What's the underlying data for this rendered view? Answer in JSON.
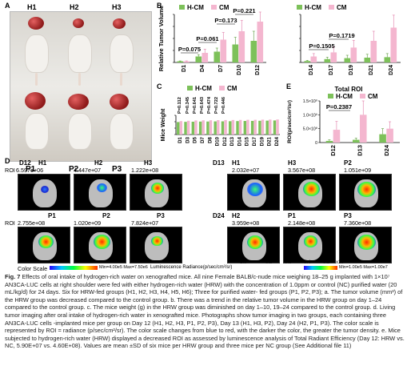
{
  "panel_labels": {
    "A": "A",
    "B": "B",
    "C": "C",
    "D": "D",
    "E": "E"
  },
  "panelA": {
    "headers": [
      "H1",
      "H2",
      "H3"
    ],
    "bottom_labels": [
      "P1",
      "P2",
      "P3"
    ]
  },
  "legend": {
    "h": "H-CM",
    "c": "CM",
    "h_color": "#7dc15a",
    "c_color": "#f4b6cf"
  },
  "chart_data": [
    {
      "type": "bar",
      "panel": "B-left",
      "ylabel": "Relative Tumor Volume",
      "categories": [
        "D1",
        "D4",
        "D7",
        "D10",
        "D12"
      ],
      "ylim": [
        0,
        40
      ],
      "yticks": [
        "0",
        "10",
        "20",
        "30",
        "40"
      ],
      "series": [
        {
          "name": "H-CM",
          "values": [
            1,
            5,
            9,
            15,
            18
          ],
          "errors": [
            0.3,
            1.5,
            3,
            6,
            8
          ]
        },
        {
          "name": "CM",
          "values": [
            1,
            8,
            19,
            26,
            34
          ],
          "errors": [
            0.3,
            3,
            6,
            9,
            8
          ]
        }
      ],
      "annotations": [
        "P=0.075",
        "P=0.061",
        "P=0.173",
        "P=0.221"
      ]
    },
    {
      "type": "bar",
      "panel": "B-right",
      "categories": [
        "D14",
        "D17",
        "D19",
        "D21",
        "D24"
      ],
      "ylim": [
        0,
        2000
      ],
      "yticks": [
        "0",
        "500",
        "1000",
        "1500",
        "2000"
      ],
      "series": [
        {
          "name": "H-CM",
          "values": [
            60,
            140,
            180,
            200,
            220
          ],
          "errors": [
            30,
            80,
            120,
            140,
            150
          ]
        },
        {
          "name": "CM",
          "values": [
            250,
            420,
            620,
            900,
            1450
          ],
          "errors": [
            120,
            220,
            300,
            400,
            520
          ]
        }
      ],
      "annotations": [
        "P=0.1505",
        "P=0.1719"
      ]
    },
    {
      "type": "bar",
      "panel": "C",
      "ylabel": "Mice Weight",
      "categories": [
        "D1",
        "D3",
        "D5",
        "D7",
        "D8",
        "D10",
        "D12",
        "D13",
        "D14",
        "D15",
        "D17",
        "D19",
        "D21",
        "D24"
      ],
      "ylim": [
        0,
        30
      ],
      "yticks": [
        "0",
        "10",
        "20",
        "30"
      ],
      "series": [
        {
          "name": "H-CM",
          "values": [
            19.5,
            19.8,
            20,
            20.2,
            20.3,
            20.5,
            20.6,
            20.8,
            21,
            21.2,
            21.3,
            21.5,
            21.7,
            22
          ]
        },
        {
          "name": "CM",
          "values": [
            21,
            21.5,
            22,
            22.2,
            22.3,
            22.5,
            22.6,
            22.7,
            22.8,
            23,
            23,
            23.2,
            23.3,
            23.5
          ]
        }
      ],
      "annotations": [
        "P=0.112",
        "P=0.345",
        "P=0.641",
        "P=0.643",
        "P=0.474",
        "P=0.722",
        "P=0.446"
      ]
    },
    {
      "type": "bar",
      "panel": "E",
      "title": "Total ROI",
      "ylabel": "ROI(p/sec/cm²/sr)",
      "categories": [
        "D12",
        "D13",
        "D24"
      ],
      "ylim": [
        0,
        1500000000.0
      ],
      "yticks": [
        "0",
        "5.0×10⁸",
        "1.0×10⁹",
        "1.5×10⁹"
      ],
      "series": [
        {
          "name": "H-CM",
          "values": [
            59000000.0,
            100000000.0,
            300000000.0
          ],
          "errors": [
            40000000.0,
            60000000.0,
            200000000.0
          ]
        },
        {
          "name": "CM",
          "values": [
            460000000.0,
            1000000000.0,
            500000000.0
          ],
          "errors": [
            300000000.0,
            500000000.0,
            250000000.0
          ]
        }
      ],
      "annotations": [
        "P=0.2387"
      ]
    }
  ],
  "panelD": {
    "left_headers": [
      "D12",
      "H1",
      "H2",
      "H3"
    ],
    "right_headers": [
      "D13",
      "H1",
      "H3",
      "P2"
    ],
    "row1_left": [
      "6.597e+06",
      "4.447e+07",
      "1.222e+08"
    ],
    "row1_right": [
      "2.032e+07",
      "3.567e+08",
      "1.051e+09"
    ],
    "row2_left_headers": [
      "P1",
      "P2",
      "P3"
    ],
    "row2_left": [
      "2.755e+08",
      "1.020e+09",
      "7.824e+07"
    ],
    "row2_right_headers": [
      "D24",
      "H2",
      "P1",
      "P3"
    ],
    "row2_right": [
      "3.959e+08",
      "2.148e+08",
      "7.360e+08"
    ],
    "roi_label": "ROI",
    "scale_left": "Color Scale",
    "scale_left_minmax": "Min=4.00e5  Max=7.50e6",
    "scale_mid": "Luminescence Radiance(p/sec/cm²/sr)",
    "scale_ticks": [
      "1.0",
      "0.8",
      "0.6",
      "0.4",
      "0.2",
      "x10⁶"
    ],
    "scale_right_minmax": "Min=1.00e5  Max=1.00e7"
  },
  "caption": {
    "title": "Fig. 7",
    "text": " Effects of oral intake of hydrogen-rich water on xenografted mice. All nine Female BALB/c-nude mice weighing 18–25 g implanted with 1×10⁷ AN3CA-LUC cells at right shoulder were fed with either hydrogen-rich water (HRW) with the concentration of 1.0ppm or control (NC) purified water (20 mL/kg/d) for 24 days. Six for HRW-fed groups (H1, H2, H3, H4, H5, H6); Three for purified water- fed groups (P1, P2, P3); a. The tumor volume (mm³) of the HRW group was decreased compared to the control group. b. There was a trend in the relative tumor volume in the HRW group on day 1–24 compared to the control group. c. The mice weight (g) in the HRW group was diminished on day 1–10, 19–24 compared to the control group. d. Living tumor imaging after oral intake of hydrogen-rich water in xenografted mice. Photographs show tumor imaging in two groups, each containing three AN3CA-LUC cells -implanted mice per group on Day 12 (H1, H2, H3, P1, P2, P3), Day 13 (H1, H3, P2), Day 24 (H2, P1, P3). The color scale is represented by ROI = radiance (p/sec/cm²/sr). The color scale changes from blue to red, with the darker the color, the greater the tumor density. e. Mice subjected to hydrogen-rich water (HRW) displayed a decreased ROI as assessed by luminescence analysis of Total Radiant Efficiency (Day 12: HRW vs. NC, 5.90E+07 vs. 4.60E+08). Values are mean ±SD of six mice per HRW group and three mice per NC group (See Additional file 11)"
  }
}
